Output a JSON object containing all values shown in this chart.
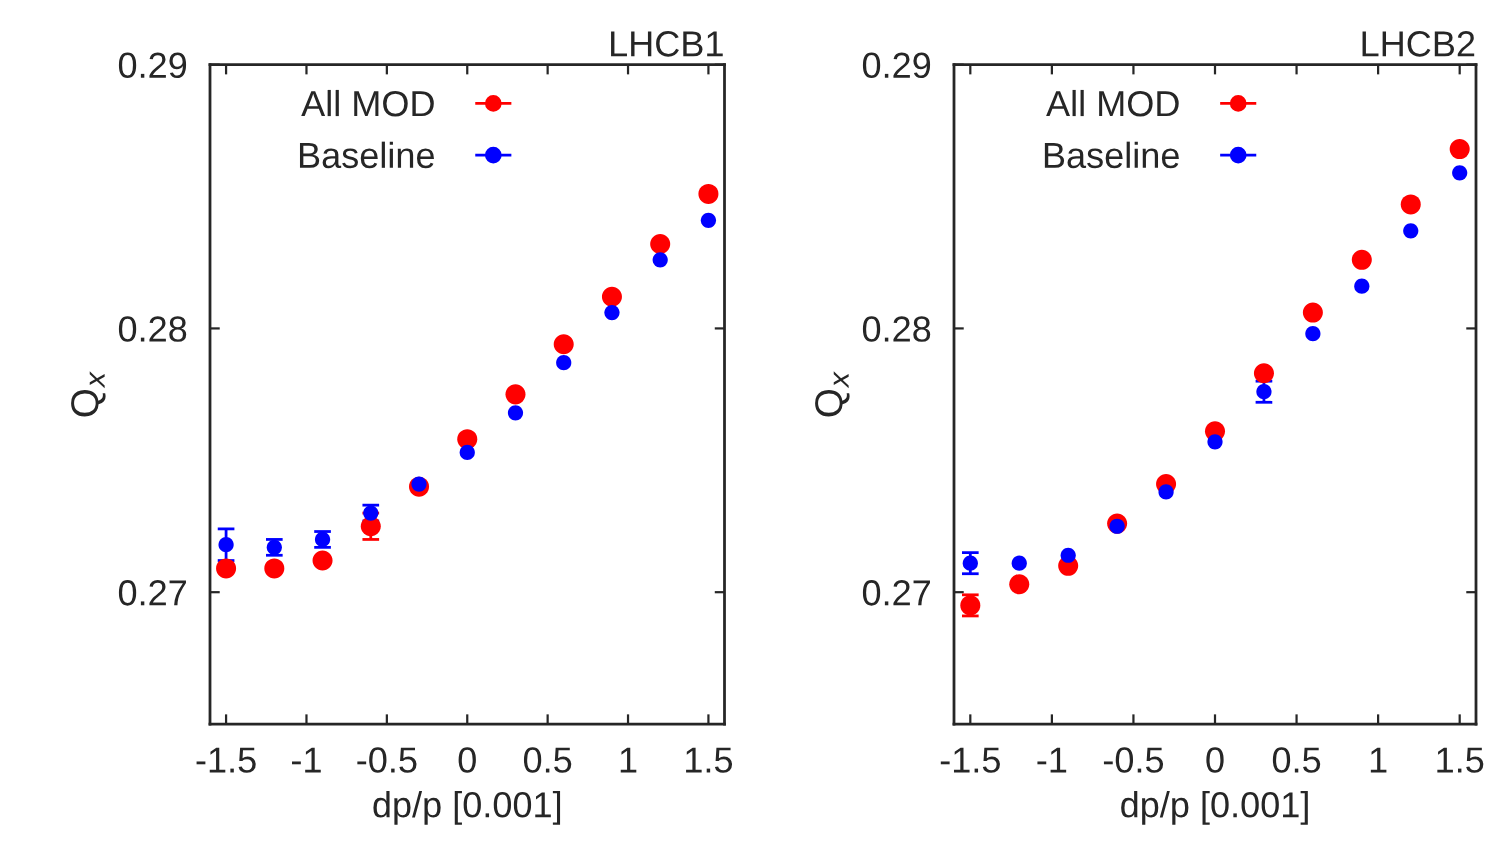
{
  "chart_data": [
    {
      "type": "scatter",
      "title": "LHCB1",
      "xlabel": "dp/p [0.001]",
      "ylabel": "Q$_{x}$",
      "legend": "top left",
      "grid": false,
      "marker": "circle",
      "x": [
        -1.5,
        -1.2,
        -0.9,
        -0.6,
        -0.3,
        0,
        0.3,
        0.6,
        0.9,
        1.2,
        1.5
      ],
      "xlim": [
        -1.6,
        1.6
      ],
      "ylim": [
        0.265,
        0.29
      ],
      "xticks": [
        {
          "value": -1.5,
          "label": "-1.5"
        },
        {
          "value": -1,
          "label": "-1"
        },
        {
          "value": -0.5,
          "label": "-0.5"
        },
        {
          "value": 0,
          "label": "0"
        },
        {
          "value": 0.5,
          "label": "0.5"
        },
        {
          "value": 1,
          "label": "1"
        },
        {
          "value": 1.5,
          "label": "1.5"
        }
      ],
      "yticks": [
        0.27,
        0.28,
        0.29
      ],
      "series": [
        {
          "name": "All MOD",
          "color": "#ff0000",
          "values": [
            0.2709,
            0.2709,
            0.2712,
            0.2725,
            0.274,
            0.2758,
            0.2775,
            0.2794,
            0.2812,
            0.2832,
            0.2851
          ],
          "errors": [
            null,
            null,
            null,
            0.0005,
            null,
            null,
            null,
            null,
            null,
            null,
            null
          ]
        },
        {
          "name": "Baseline",
          "color": "#0000ff",
          "values": [
            0.2718,
            0.2717,
            0.272,
            0.273,
            0.2741,
            0.2753,
            0.2768,
            0.2787,
            0.2806,
            0.2826,
            0.2841
          ],
          "errors": [
            0.0006,
            0.0003,
            0.0003,
            0.0003,
            null,
            null,
            null,
            null,
            null,
            null,
            null
          ]
        }
      ]
    },
    {
      "type": "scatter",
      "title": "LHCB2",
      "xlabel": "dp/p [0.001]",
      "ylabel": "Q$_{x}$",
      "legend": "top left",
      "grid": false,
      "marker": "circle",
      "x": [
        -1.5,
        -1.2,
        -0.9,
        -0.6,
        -0.3,
        0,
        0.3,
        0.6,
        0.9,
        1.2,
        1.5
      ],
      "xlim": [
        -1.6,
        1.6
      ],
      "ylim": [
        0.265,
        0.29
      ],
      "xticks": [
        {
          "value": -1.5,
          "label": "-1.5"
        },
        {
          "value": -1,
          "label": "-1"
        },
        {
          "value": -0.5,
          "label": "-0.5"
        },
        {
          "value": 0,
          "label": "0"
        },
        {
          "value": 0.5,
          "label": "0.5"
        },
        {
          "value": 1,
          "label": "1"
        },
        {
          "value": 1.5,
          "label": "1.5"
        }
      ],
      "yticks": [
        0.27,
        0.28,
        0.29
      ],
      "series": [
        {
          "name": "All MOD",
          "color": "#ff0000",
          "values": [
            0.2695,
            0.2703,
            0.271,
            0.2726,
            0.2741,
            0.2761,
            0.2783,
            0.2806,
            0.2826,
            0.2847,
            0.2868
          ],
          "errors": [
            0.0004,
            null,
            null,
            null,
            null,
            null,
            null,
            null,
            null,
            null,
            null
          ]
        },
        {
          "name": "Baseline",
          "color": "#0000ff",
          "values": [
            0.2711,
            0.2711,
            0.2714,
            0.2725,
            0.2738,
            0.2757,
            0.2776,
            0.2798,
            0.2816,
            0.2837,
            0.2859
          ],
          "errors": [
            0.0004,
            null,
            null,
            null,
            null,
            null,
            0.0004,
            null,
            null,
            null,
            null
          ]
        }
      ]
    }
  ]
}
